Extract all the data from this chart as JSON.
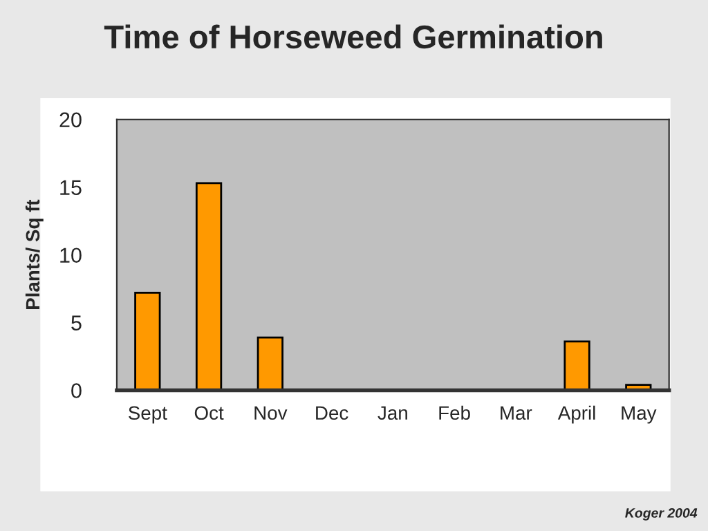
{
  "chart_data": {
    "type": "bar",
    "title": "Time of Horseweed Germination",
    "ylabel": "Plants/ Sq ft",
    "categories": [
      "Sept",
      "Oct",
      "Nov",
      "Dec",
      "Jan",
      "Feb",
      "Mar",
      "April",
      "May"
    ],
    "values": [
      7.2,
      15.3,
      3.9,
      0,
      0,
      0,
      0,
      3.6,
      0.4
    ],
    "color": "#ff9900",
    "ylim": [
      0,
      20
    ],
    "yticks": [
      0,
      5,
      10,
      15,
      20
    ],
    "grid": false,
    "legend": false,
    "annotations": [
      "Koger 2004"
    ]
  }
}
